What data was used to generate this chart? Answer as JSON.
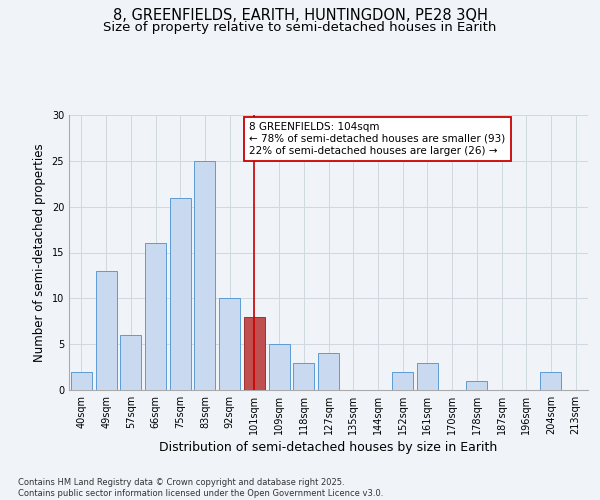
{
  "title": "8, GREENFIELDS, EARITH, HUNTINGDON, PE28 3QH",
  "subtitle": "Size of property relative to semi-detached houses in Earith",
  "xlabel": "Distribution of semi-detached houses by size in Earith",
  "ylabel": "Number of semi-detached properties",
  "categories": [
    "40sqm",
    "49sqm",
    "57sqm",
    "66sqm",
    "75sqm",
    "83sqm",
    "92sqm",
    "101sqm",
    "109sqm",
    "118sqm",
    "127sqm",
    "135sqm",
    "144sqm",
    "152sqm",
    "161sqm",
    "170sqm",
    "178sqm",
    "187sqm",
    "196sqm",
    "204sqm",
    "213sqm"
  ],
  "values": [
    2,
    13,
    6,
    16,
    21,
    25,
    10,
    8,
    5,
    3,
    4,
    0,
    0,
    2,
    3,
    0,
    1,
    0,
    0,
    2,
    0
  ],
  "bar_color": "#c9d9f0",
  "bar_edge_color": "#5b9bd5",
  "highlight_bar_color": "#c05050",
  "highlight_bar_edge_color": "#a03030",
  "highlight_index": 7,
  "vline_color": "#cc0000",
  "annotation_title": "8 GREENFIELDS: 104sqm",
  "annotation_line1": "← 78% of semi-detached houses are smaller (93)",
  "annotation_line2": "22% of semi-detached houses are larger (26) →",
  "annotation_box_facecolor": "#ffffff",
  "annotation_box_edgecolor": "#cc0000",
  "ylim": [
    0,
    30
  ],
  "yticks": [
    0,
    5,
    10,
    15,
    20,
    25,
    30
  ],
  "footnote": "Contains HM Land Registry data © Crown copyright and database right 2025.\nContains public sector information licensed under the Open Government Licence v3.0.",
  "background_color": "#f0f4f8",
  "grid_color": "#d0d8e0",
  "title_fontsize": 10.5,
  "subtitle_fontsize": 9.5,
  "ylabel_fontsize": 8.5,
  "xlabel_fontsize": 9,
  "tick_fontsize": 7,
  "annotation_fontsize": 7.5,
  "footnote_fontsize": 6
}
